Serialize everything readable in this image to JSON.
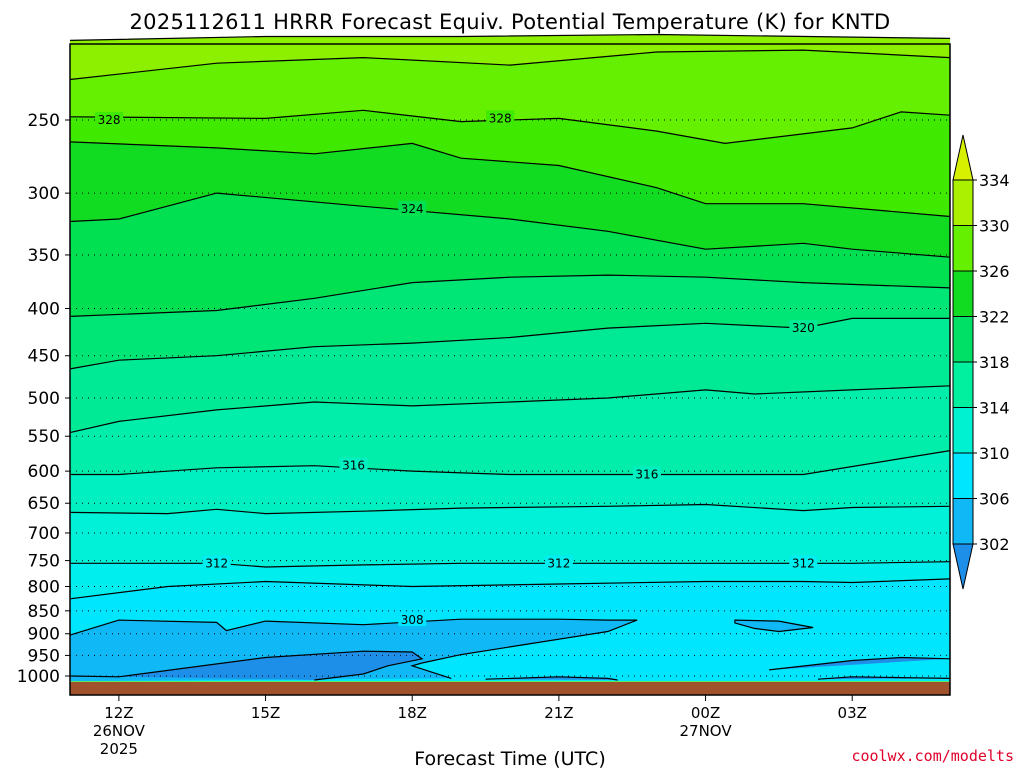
{
  "chart_data": {
    "type": "heatmap",
    "title": "2025112611 HRRR Forecast Equiv. Potential Temperature (K) for KNTD",
    "xlabel": "Forecast Time (UTC)",
    "ylabel": "",
    "y_scale": "log-pressure (hPa), inverted",
    "y_ticks": [
      250,
      300,
      350,
      400,
      450,
      500,
      550,
      600,
      650,
      700,
      750,
      800,
      850,
      900,
      950,
      1000
    ],
    "ylim": [
      1013,
      200
    ],
    "x_ticks": [
      {
        "hour": 1,
        "label": "12Z",
        "sublabel": "26NOV",
        "sublabel2": "2025"
      },
      {
        "hour": 4,
        "label": "15Z",
        "sublabel": "",
        "sublabel2": ""
      },
      {
        "hour": 7,
        "label": "18Z",
        "sublabel": "",
        "sublabel2": ""
      },
      {
        "hour": 10,
        "label": "21Z",
        "sublabel": "",
        "sublabel2": ""
      },
      {
        "hour": 13,
        "label": "00Z",
        "sublabel": "27NOV",
        "sublabel2": ""
      },
      {
        "hour": 16,
        "label": "03Z",
        "sublabel": "",
        "sublabel2": ""
      }
    ],
    "xlim": [
      0,
      18
    ],
    "grid": "dotted horizontal at y ticks",
    "colorbar": {
      "levels": [
        302,
        306,
        310,
        314,
        318,
        322,
        326,
        330,
        334
      ],
      "colors": [
        "#1e8fe8",
        "#10b8f6",
        "#00e6ff",
        "#00f0d2",
        "#00f0a0",
        "#00e066",
        "#12dc22",
        "#64f000",
        "#aaf000",
        "#d6f000"
      ],
      "extend": "both"
    },
    "band_colors": {
      "302": "#1e8fe8",
      "306": "#10b8f6",
      "310": "#00e6ff",
      "314": "#00f0d2",
      "318": "#00f0a0",
      "322": "#00e066",
      "326": "#12dc22",
      "330": "#64f000",
      "334": "#aaf000"
    },
    "surface_color": "#a0522d",
    "contours": [
      {
        "level": 332,
        "label": "",
        "points": [
          [
            0,
            205
          ],
          [
            4,
            203
          ],
          [
            8,
            203
          ],
          [
            12,
            202
          ],
          [
            18,
            204
          ]
        ]
      },
      {
        "level": 330,
        "label": "",
        "points": [
          [
            0,
            226
          ],
          [
            3,
            217
          ],
          [
            6,
            214
          ],
          [
            9,
            218
          ],
          [
            12,
            211
          ],
          [
            15,
            210
          ],
          [
            18,
            214
          ]
        ]
      },
      {
        "level": 328,
        "label": "328",
        "label_at": [
          0.8,
          250
        ],
        "label2": "328",
        "label2_at": [
          8.8,
          249
        ],
        "points": [
          [
            0,
            248
          ],
          [
            4,
            249
          ],
          [
            6,
            244
          ],
          [
            8,
            251
          ],
          [
            10,
            249
          ],
          [
            12,
            257
          ],
          [
            13.4,
            265
          ],
          [
            16,
            255
          ],
          [
            17,
            245
          ],
          [
            18,
            247
          ]
        ]
      },
      {
        "level": 326,
        "label": "",
        "points": [
          [
            0,
            264
          ],
          [
            3,
            268
          ],
          [
            5,
            272
          ],
          [
            7,
            265
          ],
          [
            8,
            275
          ],
          [
            10,
            280
          ],
          [
            12,
            296
          ],
          [
            13,
            308
          ],
          [
            15,
            308
          ],
          [
            18,
            318
          ]
        ]
      },
      {
        "level": 324,
        "label": "324",
        "label_at": [
          7,
          312
        ],
        "points": [
          [
            0,
            322
          ],
          [
            1,
            320
          ],
          [
            3,
            300
          ],
          [
            6,
            310
          ],
          [
            9,
            320
          ],
          [
            11,
            330
          ],
          [
            13,
            345
          ],
          [
            15,
            340
          ],
          [
            16,
            345
          ],
          [
            18,
            352
          ]
        ]
      },
      {
        "level": 322,
        "label": "",
        "points": [
          [
            0,
            408
          ],
          [
            3,
            402
          ],
          [
            5,
            390
          ],
          [
            7,
            375
          ],
          [
            9,
            370
          ],
          [
            11,
            368
          ],
          [
            13,
            370
          ],
          [
            15,
            375
          ],
          [
            18,
            380
          ]
        ]
      },
      {
        "level": 320,
        "label": "320",
        "label_at": [
          15,
          420
        ],
        "points": [
          [
            0,
            465
          ],
          [
            1,
            455
          ],
          [
            3,
            450
          ],
          [
            5,
            440
          ],
          [
            7,
            436
          ],
          [
            9,
            430
          ],
          [
            11,
            420
          ],
          [
            13,
            415
          ],
          [
            15,
            420
          ],
          [
            16,
            410
          ],
          [
            18,
            410
          ]
        ]
      },
      {
        "level": 318,
        "label": "",
        "points": [
          [
            0,
            545
          ],
          [
            1,
            530
          ],
          [
            3,
            515
          ],
          [
            5,
            505
          ],
          [
            7,
            510
          ],
          [
            9,
            505
          ],
          [
            11,
            500
          ],
          [
            13,
            490
          ],
          [
            14,
            495
          ],
          [
            16,
            490
          ],
          [
            18,
            485
          ]
        ]
      },
      {
        "level": 316,
        "label": "316",
        "label_at": [
          5.8,
          592
        ],
        "label2": "316",
        "label2_at": [
          11.8,
          605
        ],
        "points": [
          [
            0,
            605
          ],
          [
            1,
            605
          ],
          [
            3,
            595
          ],
          [
            5,
            592
          ],
          [
            7,
            600
          ],
          [
            9,
            605
          ],
          [
            11,
            605
          ],
          [
            13,
            605
          ],
          [
            15,
            605
          ],
          [
            18,
            570
          ]
        ]
      },
      {
        "level": 314,
        "label": "",
        "points": [
          [
            0,
            665
          ],
          [
            2,
            667
          ],
          [
            3,
            660
          ],
          [
            4,
            667
          ],
          [
            6,
            663
          ],
          [
            8,
            658
          ],
          [
            11,
            655
          ],
          [
            13,
            652
          ],
          [
            15,
            662
          ],
          [
            16,
            657
          ],
          [
            18,
            655
          ]
        ]
      },
      {
        "level": 312,
        "label": "312",
        "label_at": [
          3,
          755
        ],
        "label2": "312",
        "label2_at": [
          10,
          755
        ],
        "label3": "312",
        "label3_at": [
          15,
          755
        ],
        "points": [
          [
            0,
            755
          ],
          [
            2,
            755
          ],
          [
            3,
            755
          ],
          [
            4,
            762
          ],
          [
            6,
            758
          ],
          [
            8,
            755
          ],
          [
            10,
            755
          ],
          [
            12,
            755
          ],
          [
            14,
            755
          ],
          [
            16,
            755
          ],
          [
            18,
            752
          ]
        ]
      },
      {
        "level": 310,
        "label": "",
        "points": [
          [
            0,
            825
          ],
          [
            2,
            800
          ],
          [
            4,
            790
          ],
          [
            7,
            800
          ],
          [
            10,
            795
          ],
          [
            13,
            790
          ],
          [
            15,
            790
          ],
          [
            16,
            792
          ],
          [
            18,
            785
          ]
        ]
      },
      {
        "level": 308,
        "label": "308",
        "label_at": [
          7,
          870
        ],
        "points": [
          [
            0,
            903
          ],
          [
            1,
            870
          ],
          [
            3,
            875
          ],
          [
            3.2,
            893
          ],
          [
            4,
            872
          ],
          [
            6,
            880
          ],
          [
            8,
            868
          ],
          [
            10,
            868
          ],
          [
            11,
            870
          ],
          [
            11.6,
            870
          ],
          [
            11,
            895
          ],
          [
            9,
            930
          ],
          [
            8,
            948
          ],
          [
            7.2,
            968
          ],
          [
            7,
            975
          ],
          [
            7.8,
            1006
          ]
        ]
      },
      {
        "level": 308,
        "label": "",
        "closed": true,
        "points": [
          [
            13.6,
            870
          ],
          [
            14.5,
            872
          ],
          [
            15.2,
            886
          ],
          [
            14.5,
            895
          ],
          [
            14.0,
            888
          ],
          [
            13.6,
            876
          ],
          [
            13.6,
            870
          ]
        ]
      },
      {
        "level": 306,
        "label": "",
        "points": [
          [
            0,
            1000
          ],
          [
            1,
            1002
          ],
          [
            4,
            955
          ],
          [
            6,
            940
          ],
          [
            7,
            942
          ],
          [
            7.2,
            958
          ],
          [
            6.5,
            975
          ],
          [
            6,
            995
          ],
          [
            5,
            1010
          ]
        ]
      },
      {
        "level": 306,
        "label": "",
        "points": [
          [
            8.5,
            1008
          ],
          [
            10,
            1002
          ],
          [
            11,
            1006
          ],
          [
            11.2,
            1010
          ]
        ]
      },
      {
        "level": 306,
        "label": "",
        "points": [
          [
            14.3,
            985
          ],
          [
            16,
            962
          ],
          [
            17,
            955
          ],
          [
            18,
            958
          ]
        ]
      },
      {
        "level": 306,
        "label": "",
        "points": [
          [
            15.3,
            1008
          ],
          [
            16,
            1002
          ],
          [
            17,
            1004
          ],
          [
            18,
            1006
          ]
        ]
      }
    ]
  },
  "colorbar_labels": [
    "334",
    "330",
    "326",
    "322",
    "318",
    "314",
    "310",
    "306",
    "302"
  ],
  "credit": "coolwx.com/modelts"
}
